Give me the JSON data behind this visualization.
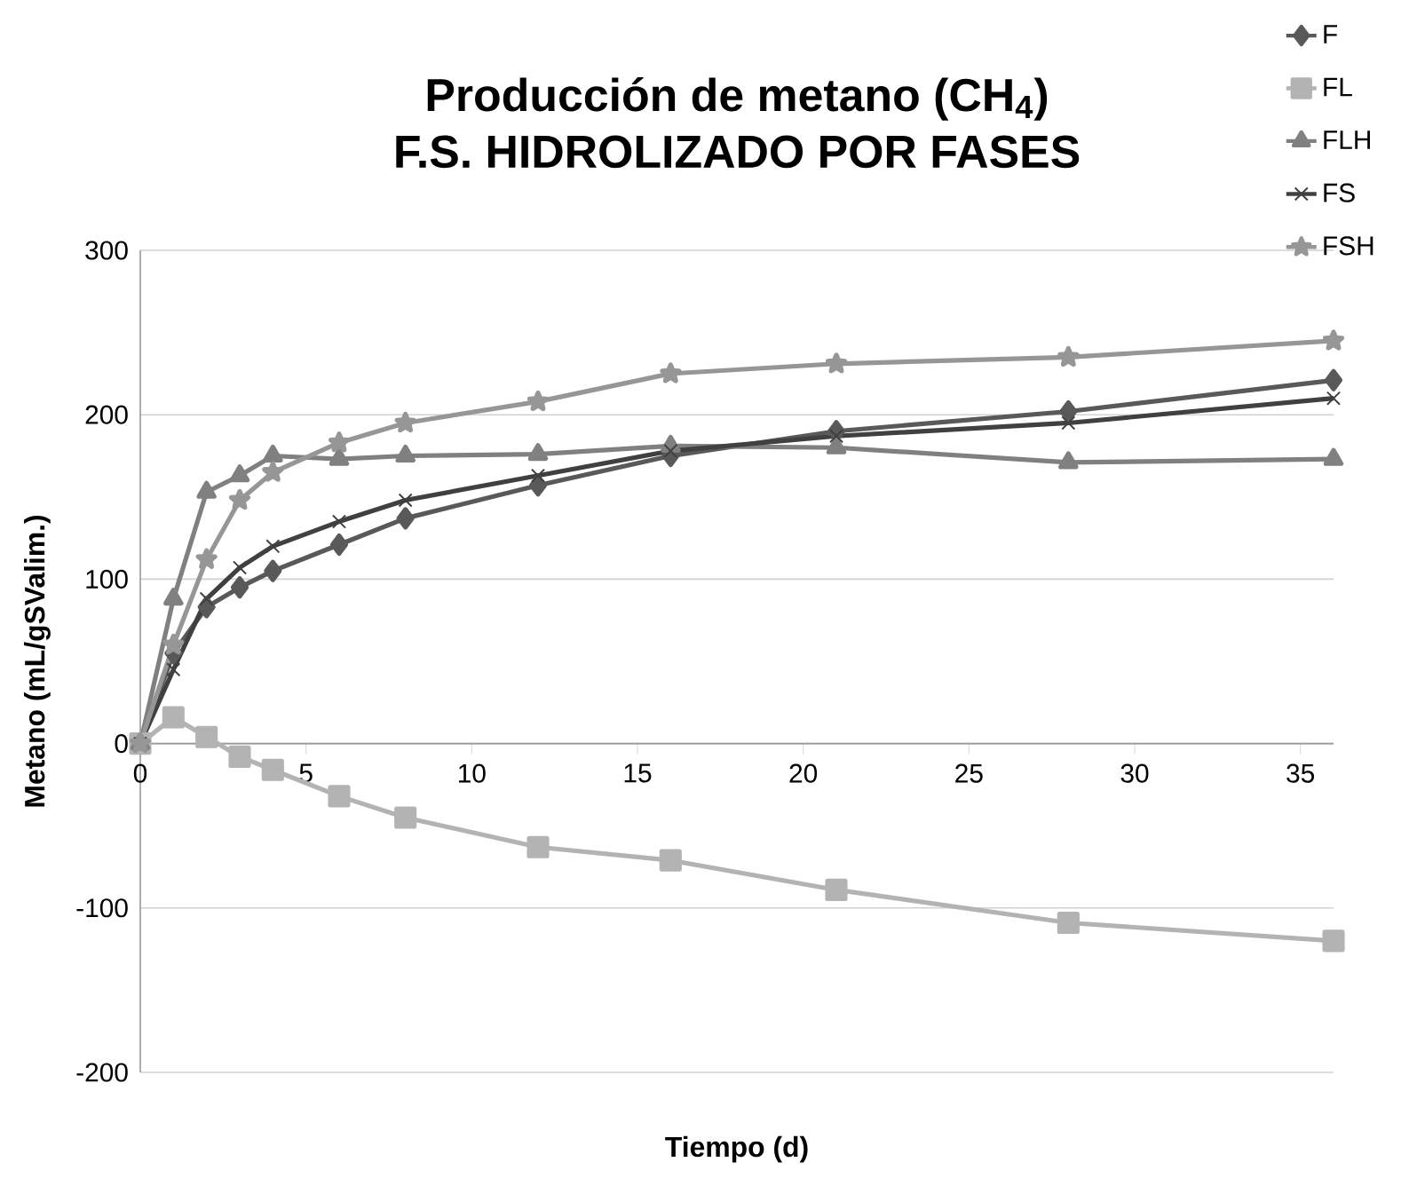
{
  "chart_data": {
    "type": "line",
    "title": "Producción de metano (CH$_{4}$)",
    "subtitle": "F.S. HIDROLIZADO POR FASES",
    "xlabel": "Tiempo (d)",
    "ylabel": "Metano (mL/gSValim.)",
    "x": [
      0,
      1,
      2,
      3,
      4,
      6,
      8,
      12,
      16,
      21,
      28,
      36
    ],
    "xlim": [
      0,
      36
    ],
    "xticks": [
      0,
      5,
      10,
      15,
      20,
      25,
      30,
      35
    ],
    "ylim": [
      -200,
      300
    ],
    "yticks": [
      -200,
      -100,
      0,
      100,
      200,
      300
    ],
    "grid": "y",
    "legend": "top right",
    "line_style": "solid",
    "series": [
      {
        "name": "F",
        "color": "#595959",
        "marker": "diamond",
        "values": [
          0,
          55,
          83,
          95,
          105,
          121,
          137,
          157,
          175,
          190,
          202,
          221
        ]
      },
      {
        "name": "FL",
        "color": "#b3b3b3",
        "marker": "square",
        "values": [
          0,
          16,
          4,
          -8,
          -16,
          -32,
          -45,
          -63,
          -71,
          -89,
          -109,
          -120
        ]
      },
      {
        "name": "FLH",
        "color": "#808080",
        "marker": "triangle",
        "values": [
          0,
          88,
          153,
          163,
          175,
          173,
          175,
          176,
          181,
          180,
          171,
          173
        ]
      },
      {
        "name": "FS",
        "color": "#404040",
        "marker": "cross",
        "values": [
          0,
          45,
          88,
          107,
          120,
          135,
          148,
          163,
          178,
          187,
          195,
          210
        ]
      },
      {
        "name": "FSH",
        "color": "#969696",
        "marker": "star",
        "values": [
          0,
          60,
          112,
          148,
          165,
          183,
          195,
          208,
          225,
          231,
          235,
          245
        ]
      }
    ]
  }
}
